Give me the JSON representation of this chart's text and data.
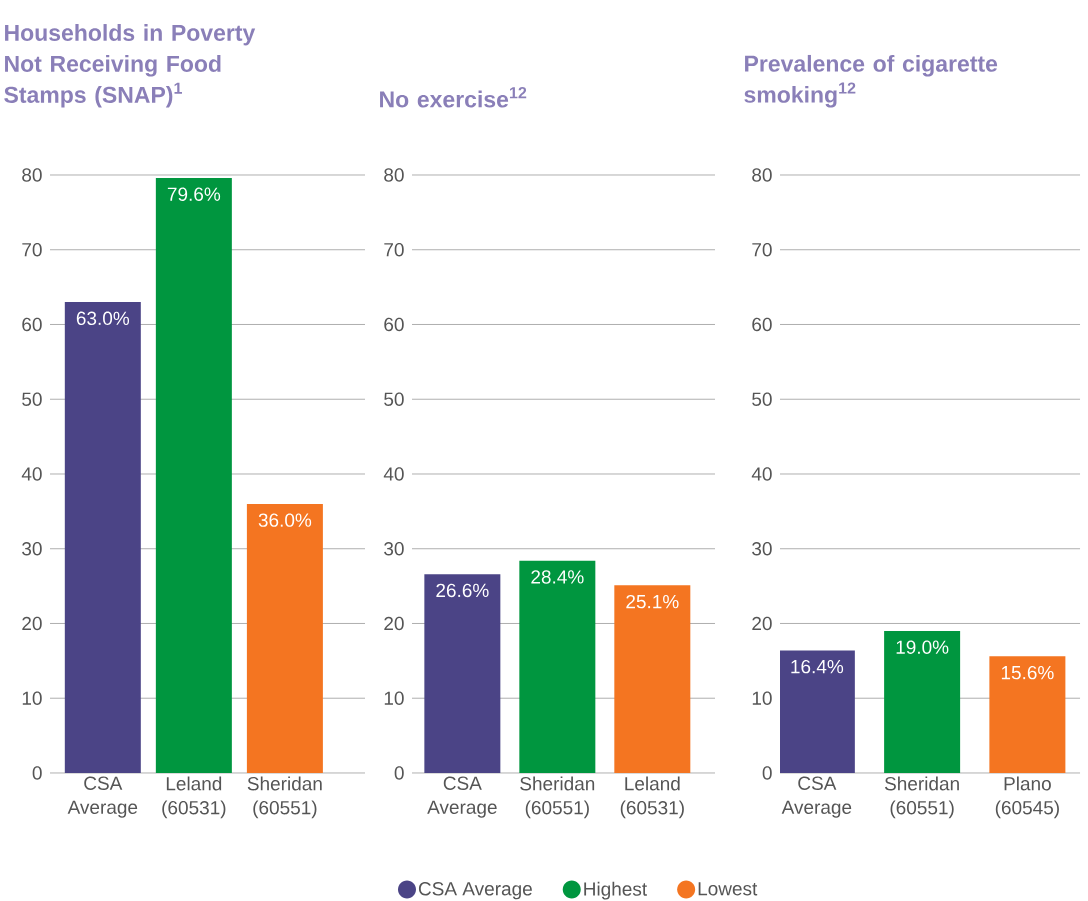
{
  "chart_data": [
    {
      "type": "bar",
      "title": "Households in Poverty Not Receiving Food Stamps (SNAP)$^{1}$",
      "categories": [
        "CSA Average",
        "Leland (60531)",
        "Sheridan (60551)"
      ],
      "series": [
        {
          "color": "#4b4486",
          "values": [
            63.0,
            null,
            null
          ],
          "value_labels": [
            "63.0%",
            null,
            null
          ]
        },
        {
          "color": "#00963f",
          "values": [
            null,
            79.6,
            null
          ],
          "value_labels": [
            null,
            "79.6%",
            null
          ]
        },
        {
          "color": "#f47521",
          "values": [
            null,
            null,
            36.0
          ],
          "value_labels": [
            null,
            null,
            "36.0%"
          ]
        }
      ],
      "ylim": [
        0,
        80
      ],
      "yticks": [
        0,
        10,
        20,
        30,
        40,
        50,
        60,
        70,
        80
      ],
      "grid": "y"
    },
    {
      "type": "bar",
      "title": "No exercise$^{12}$",
      "categories": [
        "CSA Average",
        "Sheridan (60551)",
        "Leland (60531)"
      ],
      "series": [
        {
          "name": "CSA Average",
          "color": "#4b4486",
          "values": [
            26.6,
            null,
            null
          ],
          "value_labels": [
            "26.6%",
            null,
            null
          ]
        },
        {
          "name": "Highest",
          "color": "#00963f",
          "values": [
            null,
            28.4,
            null
          ],
          "value_labels": [
            null,
            "28.4%",
            null
          ]
        },
        {
          "name": "Lowest",
          "color": "#f47521",
          "values": [
            null,
            null,
            25.1
          ],
          "value_labels": [
            null,
            null,
            "25.1%"
          ]
        }
      ],
      "ylim": [
        0,
        80
      ],
      "yticks": [
        0,
        10,
        20,
        30,
        40,
        50,
        60,
        70,
        80
      ],
      "grid": "y",
      "legend": "bottom"
    },
    {
      "type": "bar",
      "title": "Prevalence of cigarette smoking$^{12}$",
      "categories": [
        "CSA Average",
        "Sheridan (60551)",
        "Plano (60545)"
      ],
      "series": [
        {
          "color": "#4b4486",
          "values": [
            16.4,
            null,
            null
          ],
          "value_labels": [
            "16.4%",
            null,
            null
          ]
        },
        {
          "color": "#00963f",
          "values": [
            null,
            19.0,
            null
          ],
          "value_labels": [
            null,
            "19.0%",
            null
          ]
        },
        {
          "color": "#f47521",
          "values": [
            null,
            null,
            15.6
          ],
          "value_labels": [
            null,
            null,
            "15.6%"
          ]
        }
      ],
      "ylim": [
        0,
        80
      ],
      "yticks": [
        0,
        10,
        20,
        30,
        40,
        50,
        60,
        70,
        80
      ],
      "grid": "y"
    }
  ]
}
